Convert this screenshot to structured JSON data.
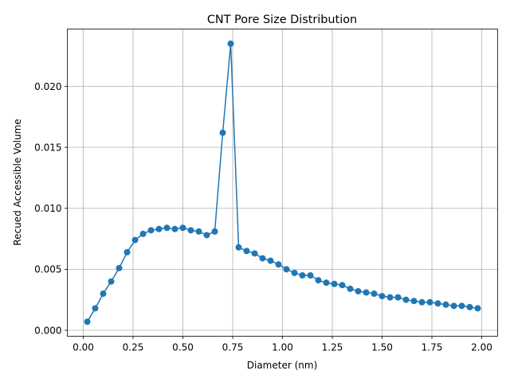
{
  "chart_data": {
    "type": "line",
    "title": "CNT Pore Size Distribution",
    "xlabel": "Diameter (nm)",
    "ylabel": "Recued Accessible Volume",
    "xlim": [
      -0.08,
      2.08
    ],
    "ylim": [
      -0.00049,
      0.0247
    ],
    "xticks": [
      0.0,
      0.25,
      0.5,
      0.75,
      1.0,
      1.25,
      1.5,
      1.75,
      2.0
    ],
    "xtick_labels": [
      "0.00",
      "0.25",
      "0.50",
      "0.75",
      "1.00",
      "1.25",
      "1.50",
      "1.75",
      "2.00"
    ],
    "yticks": [
      0.0,
      0.005,
      0.01,
      0.015,
      0.02
    ],
    "ytick_labels": [
      "0.000",
      "0.005",
      "0.010",
      "0.015",
      "0.020"
    ],
    "grid": true,
    "color": "#1f77b4",
    "series": [
      {
        "x": [
          0.02,
          0.06,
          0.1,
          0.14,
          0.18,
          0.22,
          0.26,
          0.3,
          0.34,
          0.38,
          0.42,
          0.46,
          0.5,
          0.54,
          0.58,
          0.62,
          0.66,
          0.7,
          0.74,
          0.78,
          0.82,
          0.86,
          0.9,
          0.94,
          0.98,
          1.02,
          1.06,
          1.1,
          1.14,
          1.18,
          1.22,
          1.26,
          1.3,
          1.34,
          1.38,
          1.42,
          1.46,
          1.5,
          1.54,
          1.58,
          1.62,
          1.66,
          1.7,
          1.74,
          1.78,
          1.82,
          1.86,
          1.9,
          1.94,
          1.98
        ],
        "y": [
          0.0007,
          0.0018,
          0.003,
          0.004,
          0.0051,
          0.0064,
          0.0074,
          0.0079,
          0.0082,
          0.0083,
          0.0084,
          0.0083,
          0.0084,
          0.0082,
          0.0081,
          0.0078,
          0.0081,
          0.0162,
          0.0235,
          0.0068,
          0.0065,
          0.0063,
          0.0059,
          0.0057,
          0.0054,
          0.005,
          0.0047,
          0.0045,
          0.0045,
          0.0041,
          0.0039,
          0.0038,
          0.0037,
          0.0034,
          0.0032,
          0.0031,
          0.003,
          0.0028,
          0.0027,
          0.0027,
          0.0025,
          0.0024,
          0.0023,
          0.0023,
          0.0022,
          0.0021,
          0.002,
          0.002,
          0.0019,
          0.0018
        ]
      }
    ]
  }
}
